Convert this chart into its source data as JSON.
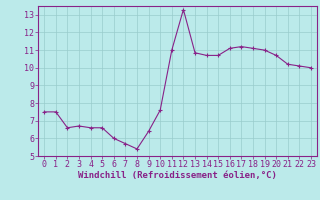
{
  "x": [
    0,
    1,
    2,
    3,
    4,
    5,
    6,
    7,
    8,
    9,
    10,
    11,
    12,
    13,
    14,
    15,
    16,
    17,
    18,
    19,
    20,
    21,
    22,
    23
  ],
  "y": [
    7.5,
    7.5,
    6.6,
    6.7,
    6.6,
    6.6,
    6.0,
    5.7,
    5.4,
    6.4,
    7.6,
    11.0,
    13.3,
    10.85,
    10.7,
    10.7,
    11.1,
    11.2,
    11.1,
    11.0,
    10.7,
    10.2,
    10.1,
    10.0
  ],
  "line_color": "#882288",
  "marker": "+",
  "markersize": 3.5,
  "linewidth": 0.8,
  "xlabel": "Windchill (Refroidissement éolien,°C)",
  "xlabel_fontsize": 6.5,
  "ylim": [
    5,
    13.5
  ],
  "yticks": [
    5,
    6,
    7,
    8,
    9,
    10,
    11,
    12,
    13
  ],
  "xticks": [
    0,
    1,
    2,
    3,
    4,
    5,
    6,
    7,
    8,
    9,
    10,
    11,
    12,
    13,
    14,
    15,
    16,
    17,
    18,
    19,
    20,
    21,
    22,
    23
  ],
  "grid_color": "#99cccc",
  "background_color": "#bbeaea",
  "tick_fontsize": 6,
  "tick_color": "#882288",
  "spine_color": "#882288"
}
